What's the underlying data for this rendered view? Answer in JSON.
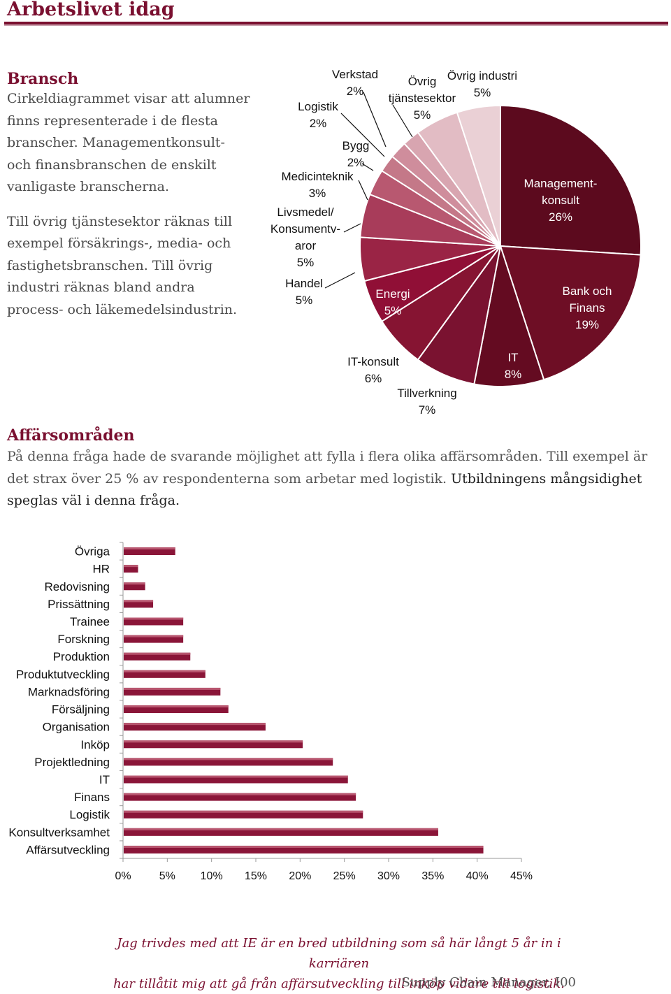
{
  "header": {
    "title": "Arbetslivet idag"
  },
  "bransch": {
    "heading": "Bransch",
    "paragraph1_lines": [
      "Cirkeldiagrammet visar att alumner",
      "finns representerade i de flesta",
      "branscher. Managementkonsult-",
      "och finansbranschen de enskilt",
      "vanligaste branscherna."
    ],
    "paragraph2_lines": [
      "Till övrig tjänstesektor räknas till",
      "exempel försäkrings-, media- och",
      "fastighetsbranschen. Till övrig",
      "industri räknas bland andra",
      "process- och läkemedelsindustrin."
    ]
  },
  "affarsomraden": {
    "heading": "Affärsområden",
    "text_part1": "På denna fråga hade de svarande möjlighet att fylla i flera olika affärsområden. Till exempel är det strax över 25 % av respondenterna som arbetar med logistik. ",
    "text_part2": "Utbildningens mångsidighet speglas väl i denna fråga."
  },
  "chart_data": [
    {
      "type": "pie",
      "slices": [
        {
          "label_lines": [
            "Management-",
            "konsult",
            "26%"
          ],
          "value": 26,
          "color": "#5c0a1e"
        },
        {
          "label_lines": [
            "Bank och",
            "Finans",
            "19%"
          ],
          "value": 19,
          "color": "#6e0e25"
        },
        {
          "label_lines": [
            "IT",
            "8%"
          ],
          "value": 8,
          "color": "#640b21"
        },
        {
          "label_lines": [
            "Tillverkning",
            "7%"
          ],
          "value": 7,
          "color": "#7a1230"
        },
        {
          "label_lines": [
            "IT-konsult",
            "6%"
          ],
          "value": 6,
          "color": "#861432"
        },
        {
          "label_lines": [
            "Energi",
            "5%"
          ],
          "value": 5,
          "color": "#900f36"
        },
        {
          "label_lines": [
            "Handel",
            "5%"
          ],
          "value": 5,
          "color": "#9a2445"
        },
        {
          "label_lines": [
            "Livsmedel/",
            "Konsumentv-",
            "aror",
            "5%"
          ],
          "value": 5,
          "color": "#a83c5a"
        },
        {
          "label_lines": [
            "Medicinteknik",
            "3%"
          ],
          "value": 3,
          "color": "#b85870"
        },
        {
          "label_lines": [
            "Bygg",
            "2%"
          ],
          "value": 2,
          "color": "#c47888"
        },
        {
          "label_lines": [
            "Logistik",
            "2%"
          ],
          "value": 2,
          "color": "#cf8d9c"
        },
        {
          "label_lines": [
            "Verkstad",
            "2%"
          ],
          "value": 2,
          "color": "#d8a5b0"
        },
        {
          "label_lines": [
            "Övrig",
            "tjänstesektor",
            "5%"
          ],
          "value": 5,
          "color": "#e2bcc4"
        },
        {
          "label_lines": [
            "Övrig industri",
            "5%"
          ],
          "value": 5,
          "color": "#ead0d5"
        }
      ]
    },
    {
      "type": "bar",
      "orientation": "horizontal",
      "categories": [
        "Övriga",
        "HR",
        "Redovisning",
        "Prissättning",
        "Trainee",
        "Forskning",
        "Produktion",
        "Produktutveckling",
        "Marknadsföring",
        "Försäljning",
        "Organisation",
        "Inköp",
        "Projektledning",
        "IT",
        "Finans",
        "Logistik",
        "Konsultverksamhet",
        "Affärsutveckling"
      ],
      "values": [
        5.9,
        1.7,
        2.5,
        3.4,
        6.8,
        6.8,
        7.6,
        9.3,
        11.0,
        11.9,
        16.1,
        20.3,
        23.7,
        25.4,
        26.3,
        27.1,
        35.6,
        40.7
      ],
      "ticks": [
        "0%",
        "5%",
        "10%",
        "15%",
        "20%",
        "25%",
        "30%",
        "35%",
        "40%",
        "45%"
      ],
      "xlim": [
        0,
        45
      ],
      "bar_color": "#8a1538"
    }
  ],
  "quote": {
    "line1": "Jag trivdes med att IE är en bred utbildning som så här långt 5 år in i karriären",
    "line2": "har tillåtit mig att gå från affärsutveckling till inköp vidare till logistik.",
    "signature": "Supply Chain Manager, I00"
  }
}
